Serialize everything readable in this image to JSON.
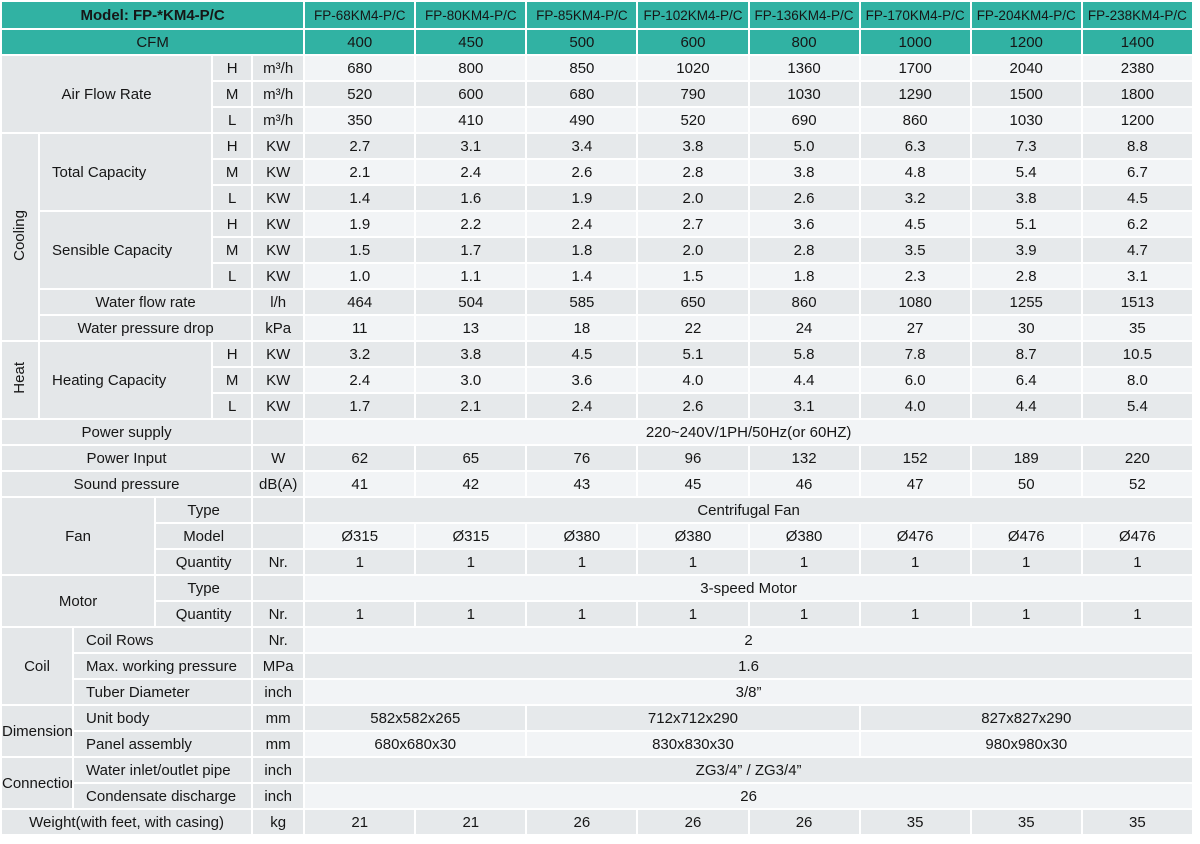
{
  "colors": {
    "header_teal": "#31b2a3",
    "label_gray": "#e4e7e9",
    "row_light": "#f2f4f6",
    "row_gray": "#e6e9eb"
  },
  "header": {
    "model_label": "Model: FP-*KM4-P/C",
    "cfm_label": "CFM",
    "models": [
      "FP-68KM4-P/C",
      "FP-80KM4-P/C",
      "FP-85KM4-P/C",
      "FP-102KM4-P/C",
      "FP-136KM4-P/C",
      "FP-170KM4-P/C",
      "FP-204KM4-P/C",
      "FP-238KM4-P/C"
    ],
    "cfm_values": [
      "400",
      "450",
      "500",
      "600",
      "800",
      "1000",
      "1200",
      "1400"
    ]
  },
  "airflow": {
    "label": "Air Flow Rate",
    "rows": [
      {
        "speed": "H",
        "unit": "m³/h",
        "values": [
          "680",
          "800",
          "850",
          "1020",
          "1360",
          "1700",
          "2040",
          "2380"
        ]
      },
      {
        "speed": "M",
        "unit": "m³/h",
        "values": [
          "520",
          "600",
          "680",
          "790",
          "1030",
          "1290",
          "1500",
          "1800"
        ]
      },
      {
        "speed": "L",
        "unit": "m³/h",
        "values": [
          "350",
          "410",
          "490",
          "520",
          "690",
          "860",
          "1030",
          "1200"
        ]
      }
    ]
  },
  "cooling": {
    "section_label": "Cooling",
    "total_capacity": {
      "label": "Total Capacity",
      "rows": [
        {
          "speed": "H",
          "unit": "KW",
          "values": [
            "2.7",
            "3.1",
            "3.4",
            "3.8",
            "5.0",
            "6.3",
            "7.3",
            "8.8"
          ]
        },
        {
          "speed": "M",
          "unit": "KW",
          "values": [
            "2.1",
            "2.4",
            "2.6",
            "2.8",
            "3.8",
            "4.8",
            "5.4",
            "6.7"
          ]
        },
        {
          "speed": "L",
          "unit": "KW",
          "values": [
            "1.4",
            "1.6",
            "1.9",
            "2.0",
            "2.6",
            "3.2",
            "3.8",
            "4.5"
          ]
        }
      ]
    },
    "sensible_capacity": {
      "label": "Sensible Capacity",
      "rows": [
        {
          "speed": "H",
          "unit": "KW",
          "values": [
            "1.9",
            "2.2",
            "2.4",
            "2.7",
            "3.6",
            "4.5",
            "5.1",
            "6.2"
          ]
        },
        {
          "speed": "M",
          "unit": "KW",
          "values": [
            "1.5",
            "1.7",
            "1.8",
            "2.0",
            "2.8",
            "3.5",
            "3.9",
            "4.7"
          ]
        },
        {
          "speed": "L",
          "unit": "KW",
          "values": [
            "1.0",
            "1.1",
            "1.4",
            "1.5",
            "1.8",
            "2.3",
            "2.8",
            "3.1"
          ]
        }
      ]
    },
    "water_flow_rate": {
      "label": "Water flow rate",
      "unit": "l/h",
      "values": [
        "464",
        "504",
        "585",
        "650",
        "860",
        "1080",
        "1255",
        "1513"
      ]
    },
    "water_pressure_drop": {
      "label": "Water pressure drop",
      "unit": "kPa",
      "values": [
        "11",
        "13",
        "18",
        "22",
        "24",
        "27",
        "30",
        "35"
      ]
    }
  },
  "heating": {
    "section_label": "Heat",
    "heating_capacity": {
      "label": "Heating Capacity",
      "rows": [
        {
          "speed": "H",
          "unit": "KW",
          "values": [
            "3.2",
            "3.8",
            "4.5",
            "5.1",
            "5.8",
            "7.8",
            "8.7",
            "10.5"
          ]
        },
        {
          "speed": "M",
          "unit": "KW",
          "values": [
            "2.4",
            "3.0",
            "3.6",
            "4.0",
            "4.4",
            "6.0",
            "6.4",
            "8.0"
          ]
        },
        {
          "speed": "L",
          "unit": "KW",
          "values": [
            "1.7",
            "2.1",
            "2.4",
            "2.6",
            "3.1",
            "4.0",
            "4.4",
            "5.4"
          ]
        }
      ]
    }
  },
  "power_supply": {
    "label": "Power supply",
    "unit": "",
    "value": "220~240V/1PH/50Hz(or 60HZ)"
  },
  "power_input": {
    "label": "Power Input",
    "unit": "W",
    "values": [
      "62",
      "65",
      "76",
      "96",
      "132",
      "152",
      "189",
      "220"
    ]
  },
  "sound_pressure": {
    "label": "Sound pressure",
    "unit": "dB(A)",
    "values": [
      "41",
      "42",
      "43",
      "45",
      "46",
      "47",
      "50",
      "52"
    ]
  },
  "fan": {
    "label": "Fan",
    "type": {
      "label": "Type",
      "unit": "",
      "value": "Centrifugal Fan"
    },
    "model": {
      "label": "Model",
      "unit": "",
      "values": [
        "Ø315",
        "Ø315",
        "Ø380",
        "Ø380",
        "Ø380",
        "Ø476",
        "Ø476",
        "Ø476"
      ]
    },
    "quantity": {
      "label": "Quantity",
      "unit": "Nr.",
      "values": [
        "1",
        "1",
        "1",
        "1",
        "1",
        "1",
        "1",
        "1"
      ]
    }
  },
  "motor": {
    "label": "Motor",
    "type": {
      "label": "Type",
      "unit": "",
      "value": "3-speed Motor"
    },
    "quantity": {
      "label": "Quantity",
      "unit": "Nr.",
      "values": [
        "1",
        "1",
        "1",
        "1",
        "1",
        "1",
        "1",
        "1"
      ]
    }
  },
  "coil": {
    "label": "Coil",
    "coil_rows": {
      "label": "Coil Rows",
      "unit": "Nr.",
      "value": "2"
    },
    "max_pressure": {
      "label": "Max. working pressure",
      "unit": "MPa",
      "value": "1.6"
    },
    "tube_diameter": {
      "label": "Tuber Diameter",
      "unit": "inch",
      "value": "3/8”"
    }
  },
  "dimensions": {
    "label": "Dimensions",
    "unit_body": {
      "label": "Unit body",
      "unit": "mm",
      "values": [
        "582x582x265",
        "712x712x290",
        "827x827x290"
      ]
    },
    "panel_assembly": {
      "label": "Panel assembly",
      "unit": "mm",
      "values": [
        "680x680x30",
        "830x830x30",
        "980x980x30"
      ]
    }
  },
  "connection": {
    "label": "Connection",
    "water_pipe": {
      "label": "Water inlet/outlet pipe",
      "unit": "inch",
      "value": "ZG3/4” / ZG3/4”"
    },
    "condensate": {
      "label": "Condensate discharge",
      "unit": "inch",
      "value": "26"
    }
  },
  "weight": {
    "label": "Weight(with feet, with casing)",
    "unit": "kg",
    "values": [
      "21",
      "21",
      "26",
      "26",
      "26",
      "35",
      "35",
      "35"
    ]
  }
}
